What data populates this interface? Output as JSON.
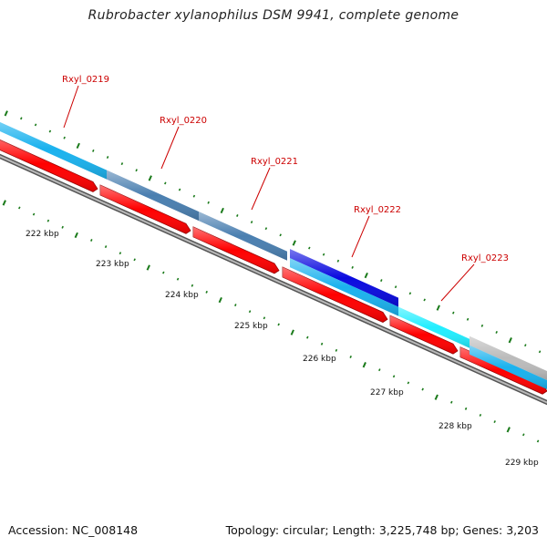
{
  "title": "Rubrobacter xylanophilus DSM 9941, complete genome",
  "footer": {
    "accession": "Accession: NC_008148",
    "summary": "Topology: circular; Length: 3,225,748 bp; Genes: 3,203"
  },
  "colors": {
    "cds": "#ff0000",
    "backbone": "#888888",
    "tick": "#1a7a1a",
    "label": "#cc0000"
  },
  "genes": [
    {
      "name": "Rxyl_0219",
      "color": "#1ab2ee"
    },
    {
      "name": "Rxyl_0220",
      "color": "#4a7fb0"
    },
    {
      "name": "Rxyl_0221",
      "color": "#4a7fb0"
    },
    {
      "name": "Rxyl_0222",
      "color": "#0a0adf"
    },
    {
      "name": "Rxyl_0223",
      "color": "#1ab2ee"
    }
  ],
  "ticks": [
    "222 kbp",
    "223 kbp",
    "224 kbp",
    "225 kbp",
    "226 kbp",
    "227 kbp",
    "228 kbp",
    "229 kbp"
  ]
}
